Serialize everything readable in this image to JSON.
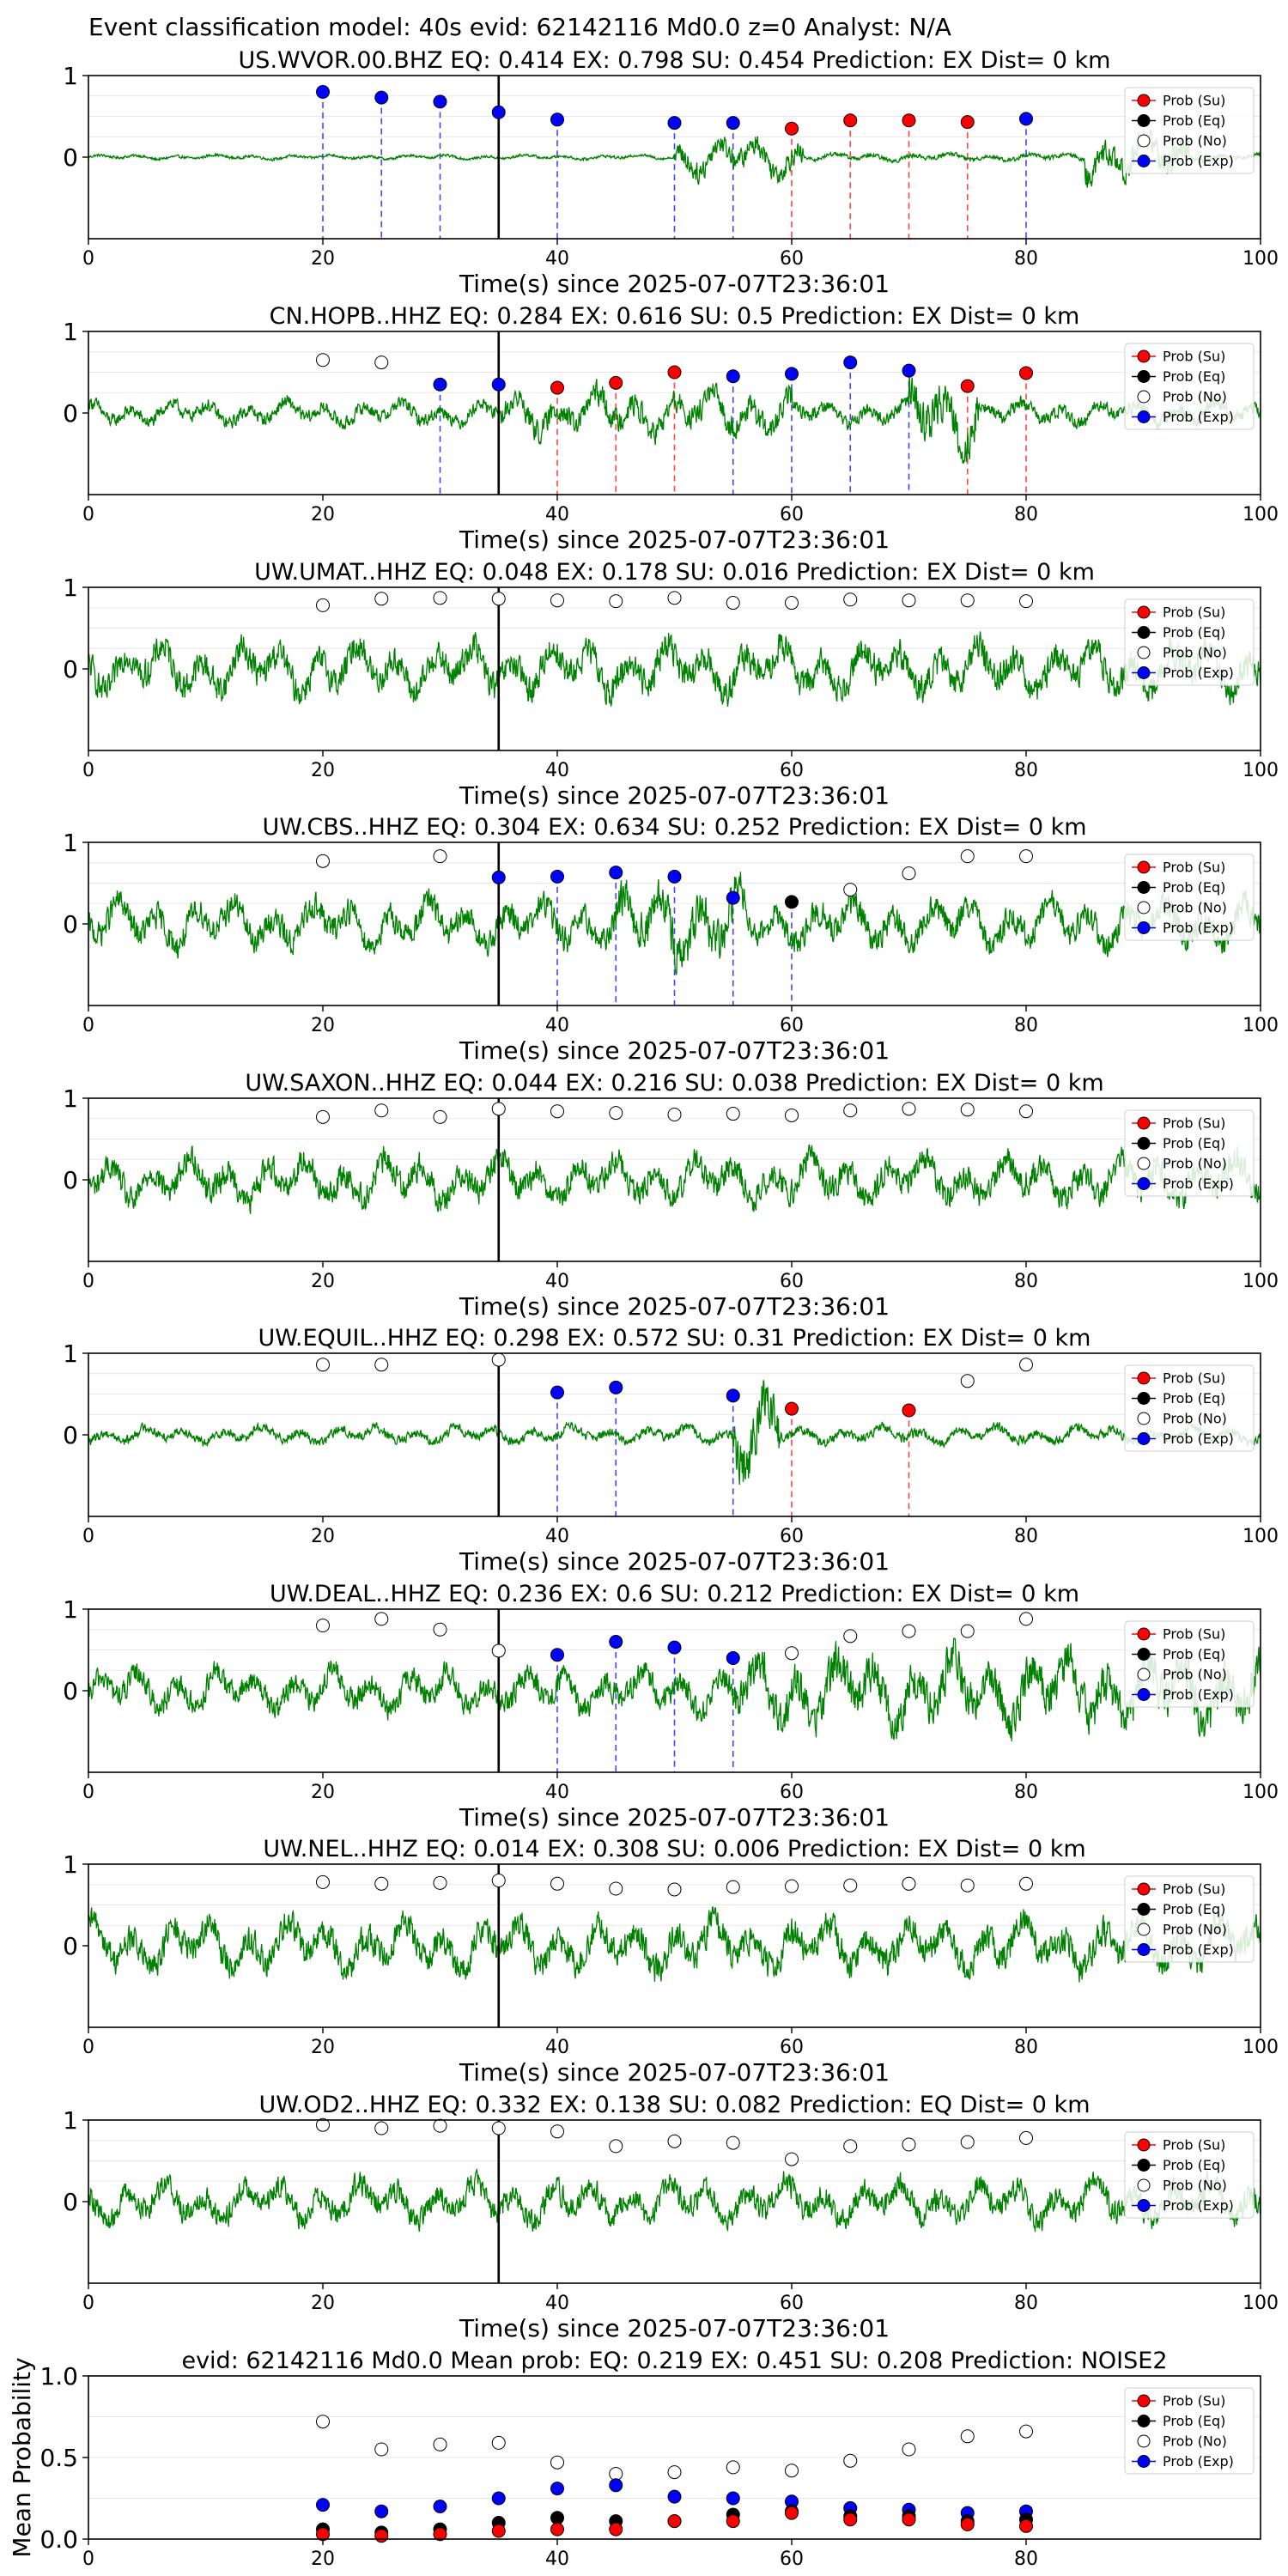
{
  "figure_title": "Event classification model: 40s evid: 62142116 Md0.0 z=0 Analyst: N/A",
  "xlabel": "Time(s) since 2025-07-07T23:36:01",
  "legend": [
    "Prob (Su)",
    "Prob (Eq)",
    "Prob (No)",
    "Prob (Exp)"
  ],
  "colors": {
    "su": "#ff0000",
    "eq": "#000000",
    "no": "#ffffff",
    "exp": "#0000ff",
    "trace": "#008000",
    "vline": "#000000"
  },
  "chart_data": [
    {
      "type": "line",
      "title": "US.WVOR.00.BHZ   EQ: 0.414  EX: 0.798  SU: 0.454   Prediction: EX    Dist= 0 km",
      "xlim": [
        0,
        100
      ],
      "ylim": [
        -1,
        1
      ],
      "xticks": [
        0,
        20,
        40,
        60,
        80,
        100
      ],
      "yticks": [
        0,
        1
      ],
      "vline": 35,
      "amp": 0.05,
      "segs": [
        [
          50,
          61,
          0.4
        ],
        [
          61,
          100,
          0.08
        ],
        [
          85,
          94,
          0.5
        ]
      ],
      "points": [
        [
          20,
          0.8,
          "exp"
        ],
        [
          25,
          0.73,
          "exp"
        ],
        [
          30,
          0.68,
          "exp"
        ],
        [
          35,
          0.55,
          "exp"
        ],
        [
          40,
          0.46,
          "exp"
        ],
        [
          50,
          0.42,
          "exp"
        ],
        [
          55,
          0.42,
          "exp"
        ],
        [
          60,
          0.35,
          "su"
        ],
        [
          65,
          0.45,
          "su"
        ],
        [
          70,
          0.45,
          "su"
        ],
        [
          75,
          0.43,
          "su"
        ],
        [
          80,
          0.47,
          "exp"
        ]
      ]
    },
    {
      "type": "line",
      "title": "CN.HOPB..HHZ   EQ: 0.284  EX: 0.616  SU: 0.5   Prediction: EX    Dist= 0 km",
      "xlim": [
        0,
        100
      ],
      "ylim": [
        -1,
        1
      ],
      "xticks": [
        0,
        20,
        40,
        60,
        80,
        100
      ],
      "yticks": [
        0,
        1
      ],
      "vline": 35,
      "amp": 0.25,
      "segs": [
        [
          35,
          60,
          0.45
        ],
        [
          70,
          76,
          0.75
        ]
      ],
      "points": [
        [
          20,
          0.65,
          "no"
        ],
        [
          25,
          0.62,
          "no"
        ],
        [
          30,
          0.35,
          "exp"
        ],
        [
          35,
          0.35,
          "exp"
        ],
        [
          40,
          0.31,
          "su"
        ],
        [
          45,
          0.37,
          "su"
        ],
        [
          50,
          0.5,
          "su"
        ],
        [
          55,
          0.45,
          "exp"
        ],
        [
          60,
          0.48,
          "exp"
        ],
        [
          65,
          0.62,
          "exp"
        ],
        [
          70,
          0.52,
          "exp"
        ],
        [
          75,
          0.33,
          "su"
        ],
        [
          80,
          0.49,
          "su"
        ]
      ]
    },
    {
      "type": "line",
      "title": "UW.UMAT..HHZ   EQ: 0.048  EX: 0.178  SU: 0.016   Prediction: EX    Dist= 0 km",
      "xlim": [
        0,
        100
      ],
      "ylim": [
        -1,
        1
      ],
      "xticks": [
        0,
        20,
        40,
        60,
        80,
        100
      ],
      "yticks": [
        0,
        1
      ],
      "vline": 35,
      "amp": 0.55,
      "segs": [],
      "points": [
        [
          20,
          0.78,
          "no"
        ],
        [
          25,
          0.86,
          "no"
        ],
        [
          30,
          0.87,
          "no"
        ],
        [
          35,
          0.86,
          "no"
        ],
        [
          40,
          0.84,
          "no"
        ],
        [
          45,
          0.83,
          "no"
        ],
        [
          50,
          0.87,
          "no"
        ],
        [
          55,
          0.81,
          "no"
        ],
        [
          60,
          0.81,
          "no"
        ],
        [
          65,
          0.85,
          "no"
        ],
        [
          70,
          0.84,
          "no"
        ],
        [
          75,
          0.84,
          "no"
        ],
        [
          80,
          0.83,
          "no"
        ]
      ]
    },
    {
      "type": "line",
      "title": "UW.CBS..HHZ   EQ: 0.304  EX: 0.634  SU: 0.252   Prediction: EX    Dist= 0 km",
      "xlim": [
        0,
        100
      ],
      "ylim": [
        -1,
        1
      ],
      "xticks": [
        0,
        20,
        40,
        60,
        80,
        100
      ],
      "yticks": [
        0,
        1
      ],
      "vline": 35,
      "amp": 0.5,
      "segs": [
        [
          45,
          56,
          0.8
        ]
      ],
      "points": [
        [
          20,
          0.77,
          "no"
        ],
        [
          30,
          0.83,
          "no"
        ],
        [
          35,
          0.57,
          "exp"
        ],
        [
          40,
          0.58,
          "exp"
        ],
        [
          45,
          0.63,
          "exp"
        ],
        [
          50,
          0.58,
          "exp"
        ],
        [
          55,
          0.32,
          "exp"
        ],
        [
          60,
          0.27,
          "eq"
        ],
        [
          65,
          0.42,
          "no"
        ],
        [
          70,
          0.62,
          "no"
        ],
        [
          75,
          0.83,
          "no"
        ],
        [
          80,
          0.83,
          "no"
        ]
      ]
    },
    {
      "type": "line",
      "title": "UW.SAXON..HHZ   EQ: 0.044  EX: 0.216  SU: 0.038   Prediction: EX    Dist= 0 km",
      "xlim": [
        0,
        100
      ],
      "ylim": [
        -1,
        1
      ],
      "xticks": [
        0,
        20,
        40,
        60,
        80,
        100
      ],
      "yticks": [
        0,
        1
      ],
      "vline": 35,
      "amp": 0.5,
      "segs": [],
      "points": [
        [
          20,
          0.77,
          "no"
        ],
        [
          25,
          0.85,
          "no"
        ],
        [
          30,
          0.77,
          "no"
        ],
        [
          35,
          0.87,
          "no"
        ],
        [
          40,
          0.84,
          "no"
        ],
        [
          45,
          0.82,
          "no"
        ],
        [
          50,
          0.8,
          "no"
        ],
        [
          55,
          0.81,
          "no"
        ],
        [
          60,
          0.79,
          "no"
        ],
        [
          65,
          0.85,
          "no"
        ],
        [
          70,
          0.87,
          "no"
        ],
        [
          75,
          0.86,
          "no"
        ],
        [
          80,
          0.84,
          "no"
        ]
      ]
    },
    {
      "type": "line",
      "title": "UW.EQUIL..HHZ   EQ: 0.298  EX: 0.572  SU: 0.31   Prediction: EX    Dist= 0 km",
      "xlim": [
        0,
        100
      ],
      "ylim": [
        -1,
        1
      ],
      "xticks": [
        0,
        20,
        40,
        60,
        80,
        100
      ],
      "yticks": [
        0,
        1
      ],
      "vline": 35,
      "amp": 0.18,
      "segs": [
        [
          55,
          59,
          0.9
        ]
      ],
      "points": [
        [
          20,
          0.86,
          "no"
        ],
        [
          25,
          0.86,
          "no"
        ],
        [
          35,
          0.92,
          "no"
        ],
        [
          40,
          0.52,
          "exp"
        ],
        [
          45,
          0.58,
          "exp"
        ],
        [
          55,
          0.48,
          "exp"
        ],
        [
          60,
          0.32,
          "su"
        ],
        [
          70,
          0.3,
          "su"
        ],
        [
          75,
          0.66,
          "no"
        ],
        [
          80,
          0.86,
          "no"
        ]
      ]
    },
    {
      "type": "line",
      "title": "UW.DEAL..HHZ   EQ: 0.236  EX: 0.6  SU: 0.212   Prediction: EX    Dist= 0 km",
      "xlim": [
        0,
        100
      ],
      "ylim": [
        -1,
        1
      ],
      "xticks": [
        0,
        20,
        40,
        60,
        80,
        100
      ],
      "yticks": [
        0,
        1
      ],
      "vline": 35,
      "amp": 0.45,
      "segs": [
        [
          55,
          100,
          0.75
        ]
      ],
      "points": [
        [
          20,
          0.8,
          "no"
        ],
        [
          25,
          0.88,
          "no"
        ],
        [
          30,
          0.75,
          "no"
        ],
        [
          35,
          0.49,
          "no"
        ],
        [
          40,
          0.44,
          "exp"
        ],
        [
          45,
          0.6,
          "exp"
        ],
        [
          50,
          0.53,
          "exp"
        ],
        [
          55,
          0.4,
          "exp"
        ],
        [
          60,
          0.46,
          "no"
        ],
        [
          65,
          0.67,
          "no"
        ],
        [
          70,
          0.73,
          "no"
        ],
        [
          75,
          0.73,
          "no"
        ],
        [
          80,
          0.88,
          "no"
        ]
      ]
    },
    {
      "type": "line",
      "title": "UW.NEL..HHZ   EQ: 0.014  EX: 0.308  SU: 0.006   Prediction: EX    Dist= 0 km",
      "xlim": [
        0,
        100
      ],
      "ylim": [
        -1,
        1
      ],
      "xticks": [
        0,
        20,
        40,
        60,
        80,
        100
      ],
      "yticks": [
        0,
        1
      ],
      "vline": 35,
      "amp": 0.55,
      "segs": [],
      "points": [
        [
          20,
          0.78,
          "no"
        ],
        [
          25,
          0.76,
          "no"
        ],
        [
          30,
          0.77,
          "no"
        ],
        [
          35,
          0.8,
          "no"
        ],
        [
          40,
          0.76,
          "no"
        ],
        [
          45,
          0.7,
          "no"
        ],
        [
          50,
          0.69,
          "no"
        ],
        [
          55,
          0.72,
          "no"
        ],
        [
          60,
          0.73,
          "no"
        ],
        [
          65,
          0.74,
          "no"
        ],
        [
          70,
          0.76,
          "no"
        ],
        [
          75,
          0.74,
          "no"
        ],
        [
          80,
          0.76,
          "no"
        ]
      ]
    },
    {
      "type": "line",
      "title": "UW.OD2..HHZ   EQ: 0.332  EX: 0.138  SU: 0.082   Prediction: EQ    Dist= 0 km",
      "xlim": [
        0,
        100
      ],
      "ylim": [
        -1,
        1
      ],
      "xticks": [
        0,
        20,
        40,
        60,
        80,
        100
      ],
      "yticks": [
        0,
        1
      ],
      "vline": 35,
      "amp": 0.45,
      "segs": [],
      "points": [
        [
          20,
          0.94,
          "no"
        ],
        [
          25,
          0.9,
          "no"
        ],
        [
          30,
          0.93,
          "no"
        ],
        [
          35,
          0.9,
          "no"
        ],
        [
          40,
          0.86,
          "no"
        ],
        [
          45,
          0.68,
          "no"
        ],
        [
          50,
          0.74,
          "no"
        ],
        [
          55,
          0.72,
          "no"
        ],
        [
          60,
          0.52,
          "no"
        ],
        [
          65,
          0.68,
          "no"
        ],
        [
          70,
          0.7,
          "no"
        ],
        [
          75,
          0.73,
          "no"
        ],
        [
          80,
          0.78,
          "no"
        ]
      ]
    },
    {
      "type": "scatter",
      "title": "evid: 62142116  Md0.0   Mean prob:    EQ: 0.219  EX: 0.451  SU: 0.208   Prediction: NOISE2",
      "ylabel": "Mean Probability",
      "xlim": [
        0,
        100
      ],
      "ylim": [
        0,
        1
      ],
      "xticks": [
        0,
        20,
        40,
        60,
        80
      ],
      "yticks": [
        0.0,
        0.5,
        1.0
      ],
      "x": [
        20,
        25,
        30,
        35,
        40,
        45,
        50,
        55,
        60,
        65,
        70,
        75,
        80
      ],
      "series": [
        {
          "key": "no",
          "values": [
            0.72,
            0.55,
            0.58,
            0.59,
            0.47,
            0.4,
            0.41,
            0.44,
            0.42,
            0.48,
            0.55,
            0.63,
            0.66
          ]
        },
        {
          "key": "exp",
          "values": [
            0.21,
            0.17,
            0.2,
            0.25,
            0.31,
            0.33,
            0.26,
            0.25,
            0.23,
            0.19,
            0.18,
            0.16,
            0.17
          ]
        },
        {
          "key": "eq",
          "values": [
            0.06,
            0.04,
            0.06,
            0.1,
            0.13,
            0.11,
            0.11,
            0.15,
            0.17,
            0.14,
            0.14,
            0.11,
            0.12
          ]
        },
        {
          "key": "su",
          "values": [
            0.03,
            0.02,
            0.03,
            0.05,
            0.06,
            0.06,
            0.11,
            0.11,
            0.16,
            0.12,
            0.12,
            0.09,
            0.08
          ]
        }
      ]
    }
  ]
}
